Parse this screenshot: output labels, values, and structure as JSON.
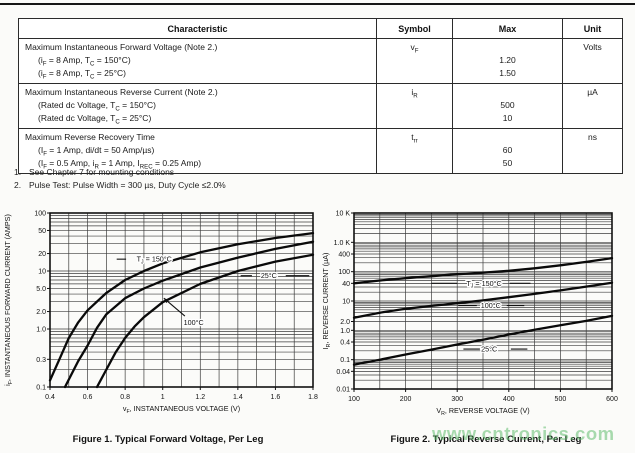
{
  "table": {
    "headers": [
      "Characteristic",
      "Symbol",
      "Max",
      "Unit"
    ],
    "rows": [
      {
        "characteristic": [
          "Maximum Instantaneous Forward Voltage (Note 2.)",
          "(i_{F} = 8 Amp, T_{C} = 150°C)",
          "(i_{F} = 8 Amp, T_{C} = 25°C)"
        ],
        "symbol": "v_{F}",
        "max": [
          "",
          "1.20",
          "1.50"
        ],
        "unit": "Volts"
      },
      {
        "characteristic": [
          "Maximum Instantaneous Reverse Current (Note 2.)",
          "(Rated dc Voltage, T_{C} = 150°C)",
          "(Rated dc Voltage, T_{C} = 25°C)"
        ],
        "symbol": "i_{R}",
        "max": [
          "",
          "500",
          "10"
        ],
        "unit": "µA"
      },
      {
        "characteristic": [
          "Maximum Reverse Recovery Time",
          "(I_{F} = 1 Amp, di/dt = 50 Amp/µs)",
          "(I_{F} = 0.5 Amp, i_{R} = 1 Amp, I_{REC} = 0.25 Amp)"
        ],
        "symbol": "t_{rr}",
        "max": [
          "",
          "60",
          "50"
        ],
        "unit": "ns"
      }
    ]
  },
  "notes": [
    {
      "num": "1.",
      "text": "See Chapter 7 for mounting conditions"
    },
    {
      "num": "2.",
      "text": "Pulse Test: Pulse Width = 300 µs, Duty Cycle ≤2.0%"
    }
  ],
  "watermark": {
    "text": "www.cntronics.com",
    "color": "rgba(98,190,112,0.55)"
  },
  "colors": {
    "ink": "#111111",
    "grid": "#3d3d3d",
    "curve": "#0a0a0a"
  },
  "chart_data": [
    {
      "type": "line",
      "title": "Figure 1. Typical Forward Voltage, Per Leg",
      "xlabel": "v_{F}, INSTANTANEOUS VOLTAGE (V)",
      "ylabel": "i_{F}, INSTANTANEOUS FORWARD CURRENT (AMPS)",
      "x_scale": "linear",
      "y_scale": "log",
      "xlim": [
        0.4,
        1.8
      ],
      "ylim": [
        0.1,
        100
      ],
      "x_major_ticks": [
        0.4,
        0.6,
        0.8,
        1,
        1.2,
        1.4,
        1.6,
        1.8
      ],
      "x_tick_labels": [
        "0.4",
        "0.6",
        "0.8",
        "1",
        "1.2",
        "1.4",
        "1.6",
        "1.8"
      ],
      "x_grid_step": 0.1,
      "y_tick_labels": [
        {
          "v": 100,
          "label": "100"
        },
        {
          "v": 50,
          "label": "50"
        },
        {
          "v": 20,
          "label": "20"
        },
        {
          "v": 10,
          "label": "10"
        },
        {
          "v": 5,
          "label": "5.0"
        },
        {
          "v": 2,
          "label": "2.0"
        },
        {
          "v": 1,
          "label": "1.0"
        },
        {
          "v": 0.3,
          "label": "0.3"
        },
        {
          "v": 0.1,
          "label": "0.1"
        }
      ],
      "grid": true,
      "legend_position": "none",
      "series": [
        {
          "name": "TJ = 150°C",
          "points": [
            [
              0.4,
              0.13
            ],
            [
              0.45,
              0.3
            ],
            [
              0.5,
              0.7
            ],
            [
              0.55,
              1.3
            ],
            [
              0.6,
              2.1
            ],
            [
              0.7,
              4.2
            ],
            [
              0.8,
              7.0
            ],
            [
              0.9,
              10
            ],
            [
              1.0,
              13.5
            ],
            [
              1.2,
              21
            ],
            [
              1.4,
              29
            ],
            [
              1.6,
              37
            ],
            [
              1.8,
              45
            ]
          ]
        },
        {
          "name": "100°C",
          "points": [
            [
              0.48,
              0.1
            ],
            [
              0.55,
              0.28
            ],
            [
              0.6,
              0.52
            ],
            [
              0.65,
              1.05
            ],
            [
              0.7,
              1.8
            ],
            [
              0.8,
              3.4
            ],
            [
              0.9,
              5.0
            ],
            [
              1.0,
              6.8
            ],
            [
              1.2,
              11.5
            ],
            [
              1.4,
              17
            ],
            [
              1.6,
              24
            ],
            [
              1.8,
              32
            ]
          ]
        },
        {
          "name": "25°C",
          "points": [
            [
              0.65,
              0.1
            ],
            [
              0.7,
              0.2
            ],
            [
              0.75,
              0.4
            ],
            [
              0.8,
              0.7
            ],
            [
              0.85,
              1.1
            ],
            [
              0.9,
              1.6
            ],
            [
              1.0,
              2.9
            ],
            [
              1.2,
              6.0
            ],
            [
              1.4,
              10
            ],
            [
              1.6,
              14.5
            ],
            [
              1.8,
              19
            ]
          ]
        }
      ],
      "annotations": [
        {
          "text": "T_{J} = 150°C",
          "x": 0.955,
          "y": 16,
          "anchor": "middle",
          "dashes": [
            [
              0.755,
              16,
              0.805,
              16
            ],
            [
              1.105,
              16,
              1.175,
              16
            ]
          ]
        },
        {
          "text": "25°C",
          "x": 1.565,
          "y": 8.3,
          "anchor": "middle",
          "dashes": [
            [
              1.415,
              8.3,
              1.475,
              8.3
            ],
            [
              1.655,
              8.3,
              1.78,
              8.3
            ]
          ]
        },
        {
          "text": "100°C",
          "x": 1.165,
          "y": 1.3,
          "anchor": "middle",
          "arrow": [
            1.118,
            1.67,
            1.006,
            3.4
          ]
        }
      ]
    },
    {
      "type": "line",
      "title": "Figure 2. Typical Reverse Current, Per Leg",
      "xlabel": "V_{R}, REVERSE VOLTAGE (V)",
      "ylabel": "I_{R}, REVERSE CURRENT (µA)",
      "x_scale": "linear",
      "y_scale": "log",
      "xlim": [
        100,
        600
      ],
      "ylim": [
        0.01,
        10000
      ],
      "x_major_ticks": [
        100,
        200,
        300,
        400,
        500,
        600
      ],
      "x_tick_labels": [
        "100",
        "200",
        "300",
        "400",
        "500",
        "600"
      ],
      "x_grid_step": 50,
      "y_tick_labels": [
        {
          "v": 10000,
          "label": "10 K"
        },
        {
          "v": 1000,
          "label": "1.0 K"
        },
        {
          "v": 400,
          "label": "400"
        },
        {
          "v": 100,
          "label": "100"
        },
        {
          "v": 40,
          "label": "40"
        },
        {
          "v": 10,
          "label": "10"
        },
        {
          "v": 2,
          "label": "2.0"
        },
        {
          "v": 1,
          "label": "1.0"
        },
        {
          "v": 0.4,
          "label": "0.4"
        },
        {
          "v": 0.1,
          "label": "0.1"
        },
        {
          "v": 0.04,
          "label": "0.04"
        },
        {
          "v": 0.01,
          "label": "0.01"
        }
      ],
      "grid": true,
      "legend_position": "none",
      "series": [
        {
          "name": "TJ = 150°C",
          "points": [
            [
              100,
              40
            ],
            [
              150,
              50
            ],
            [
              200,
              60
            ],
            [
              250,
              70
            ],
            [
              300,
              82
            ],
            [
              350,
              92
            ],
            [
              400,
              107
            ],
            [
              450,
              130
            ],
            [
              500,
              165
            ],
            [
              550,
              215
            ],
            [
              600,
              290
            ]
          ]
        },
        {
          "name": "100°C",
          "points": [
            [
              100,
              2.7
            ],
            [
              150,
              4.0
            ],
            [
              200,
              5.4
            ],
            [
              250,
              6.8
            ],
            [
              300,
              8.4
            ],
            [
              350,
              10.5
            ],
            [
              400,
              13.5
            ],
            [
              450,
              17.5
            ],
            [
              500,
              23
            ],
            [
              550,
              31
            ],
            [
              600,
              42
            ]
          ]
        },
        {
          "name": "25°C",
          "points": [
            [
              100,
              0.068
            ],
            [
              150,
              0.1
            ],
            [
              200,
              0.15
            ],
            [
              250,
              0.22
            ],
            [
              300,
              0.33
            ],
            [
              350,
              0.48
            ],
            [
              400,
              0.72
            ],
            [
              450,
              1.05
            ],
            [
              500,
              1.5
            ],
            [
              550,
              2.1
            ],
            [
              600,
              3.1
            ]
          ]
        }
      ],
      "annotations": [
        {
          "text": "T_{J} = 150°C",
          "x": 352,
          "y": 40,
          "anchor": "middle",
          "dashes": [
            [
              250,
              40,
              300,
              40
            ],
            [
              402,
              40,
              442,
              40
            ]
          ]
        },
        {
          "text": "100°C",
          "x": 365,
          "y": 7,
          "anchor": "middle",
          "dashes": [
            [
              302,
              7,
              338,
              7
            ],
            [
              396,
              7,
              430,
              7
            ]
          ]
        },
        {
          "text": "25°C",
          "x": 362,
          "y": 0.23,
          "anchor": "middle",
          "dashes": [
            [
              312,
              0.23,
              344,
              0.23
            ],
            [
              404,
              0.23,
              436,
              0.23
            ]
          ]
        }
      ]
    }
  ]
}
